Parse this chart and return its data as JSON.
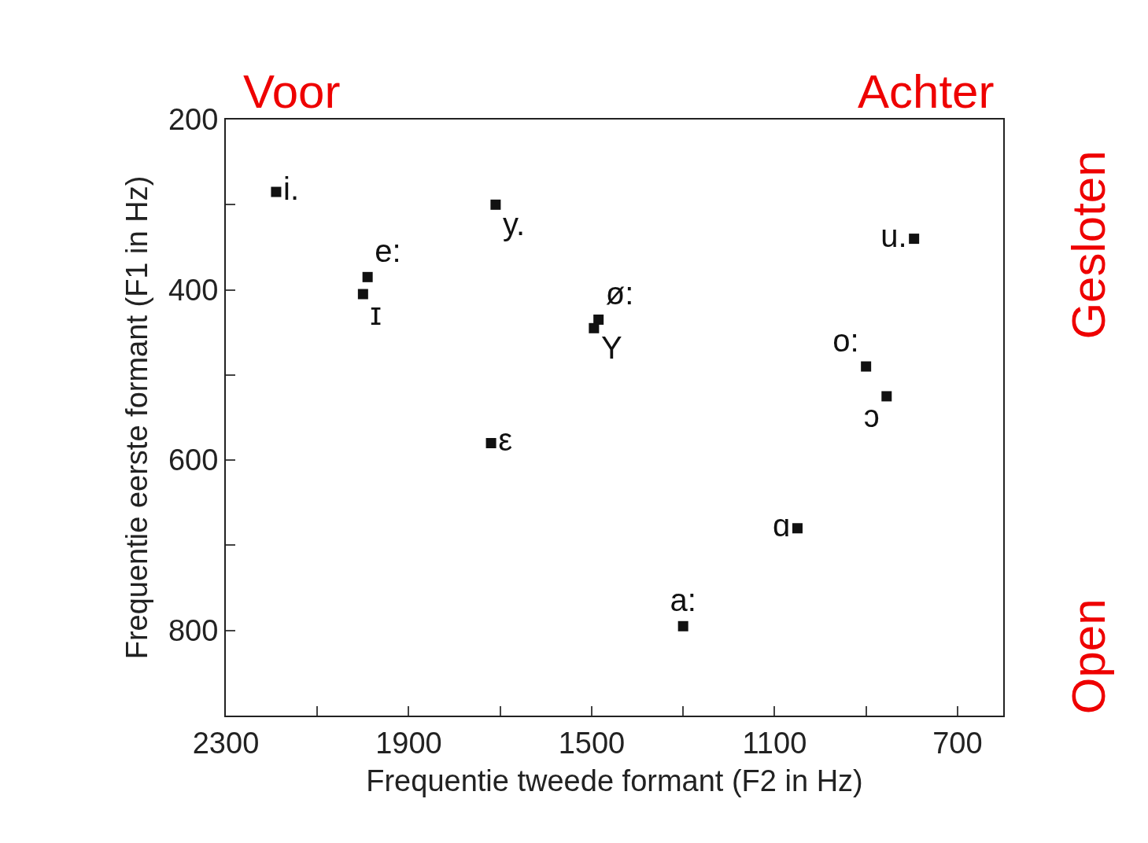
{
  "chart_data": {
    "type": "scatter",
    "xlabel": "Frequentie tweede formant (F2 in Hz)",
    "ylabel": "Frequentie eerste formant (F1 in Hz)",
    "x": [
      2190,
      1710,
      1990,
      2000,
      1485,
      1495,
      1720,
      1300,
      1050,
      900,
      855,
      795
    ],
    "values": [
      285,
      300,
      385,
      405,
      435,
      445,
      580,
      795,
      680,
      490,
      525,
      340
    ],
    "value_labels": [
      "i.",
      "y.",
      "e:",
      "ɪ",
      "ø:",
      "Y",
      "ε",
      "a:",
      "ɑ",
      "o:",
      "ɔ",
      "u."
    ],
    "color": "#111111",
    "marker": "square",
    "xlim": [
      2300,
      600
    ],
    "ylim": [
      900,
      200
    ],
    "xticks": [
      2300,
      {
        "value": 2100,
        "label": null
      },
      1900,
      {
        "value": 1700,
        "label": null
      },
      1500,
      {
        "value": 1300,
        "label": null
      },
      1100,
      {
        "value": 900,
        "label": null
      },
      700
    ],
    "yticks": [
      200,
      {
        "value": 300,
        "label": null
      },
      400,
      {
        "value": 500,
        "label": null
      },
      600,
      {
        "value": 700,
        "label": null
      },
      800
    ],
    "annotations": [
      "Voor",
      "Achter",
      "Gesloten",
      "Open"
    ]
  }
}
